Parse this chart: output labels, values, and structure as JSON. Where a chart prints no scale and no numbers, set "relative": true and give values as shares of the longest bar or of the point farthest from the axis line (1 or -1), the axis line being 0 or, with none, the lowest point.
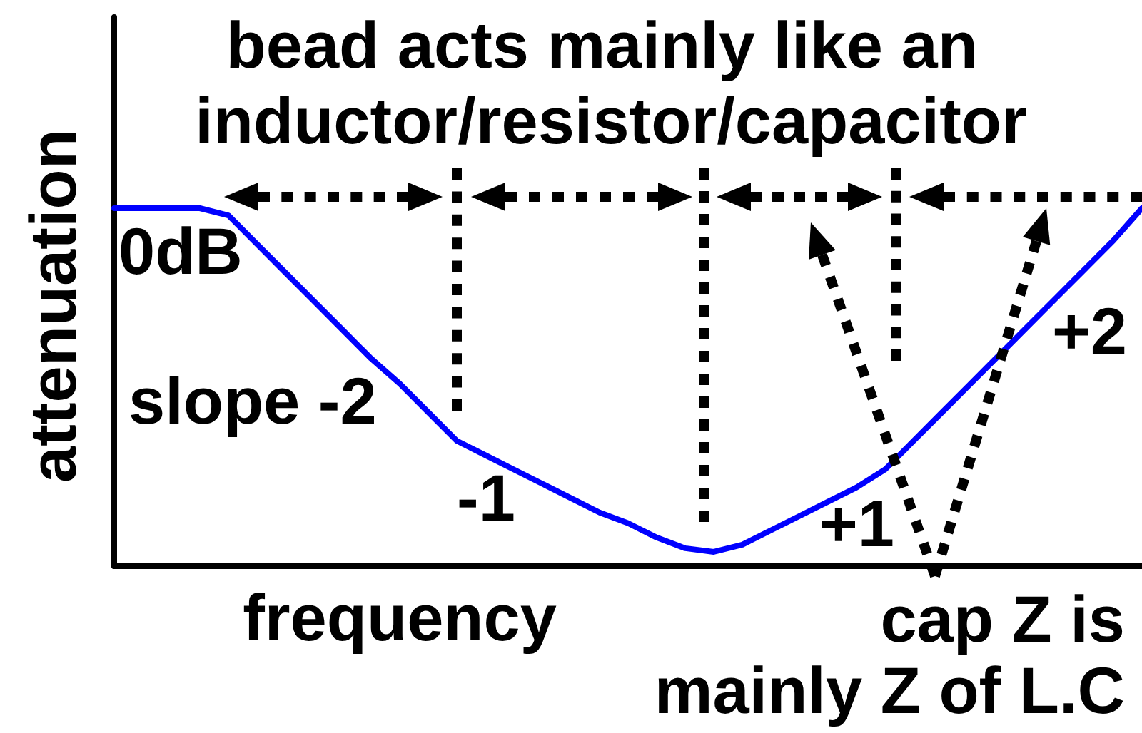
{
  "chart_data": {
    "type": "line",
    "title": "bead acts mainly like an inductor/resistor/capacitor",
    "xlabel": "frequency",
    "ylabel": "attenuation",
    "relative": true,
    "categories": [
      null,
      null,
      null,
      null,
      null,
      null,
      null,
      null,
      null,
      null,
      null,
      null,
      null,
      null,
      null,
      null,
      null,
      null,
      null,
      null,
      null,
      null,
      null,
      null,
      null,
      null,
      null,
      null,
      null,
      null,
      null,
      null,
      null,
      null,
      null,
      null,
      null
    ],
    "values": [
      1.0,
      1.0,
      1.0,
      1.0,
      0.98,
      0.9,
      0.82,
      0.74,
      0.66,
      0.58,
      0.51,
      0.43,
      0.35,
      0.31,
      0.27,
      0.23,
      0.19,
      0.15,
      0.12,
      0.08,
      0.05,
      0.04,
      0.06,
      0.1,
      0.14,
      0.18,
      0.22,
      0.27,
      0.35,
      0.43,
      0.51,
      0.59,
      0.67,
      0.75,
      0.83,
      0.91,
      1.0
    ],
    "color": "#0000ff",
    "marker": "none",
    "annotations": [
      "0dB",
      "slope -2",
      "-1",
      "+1",
      "+2",
      "cap Z is\nmainly Z of L.C"
    ]
  }
}
